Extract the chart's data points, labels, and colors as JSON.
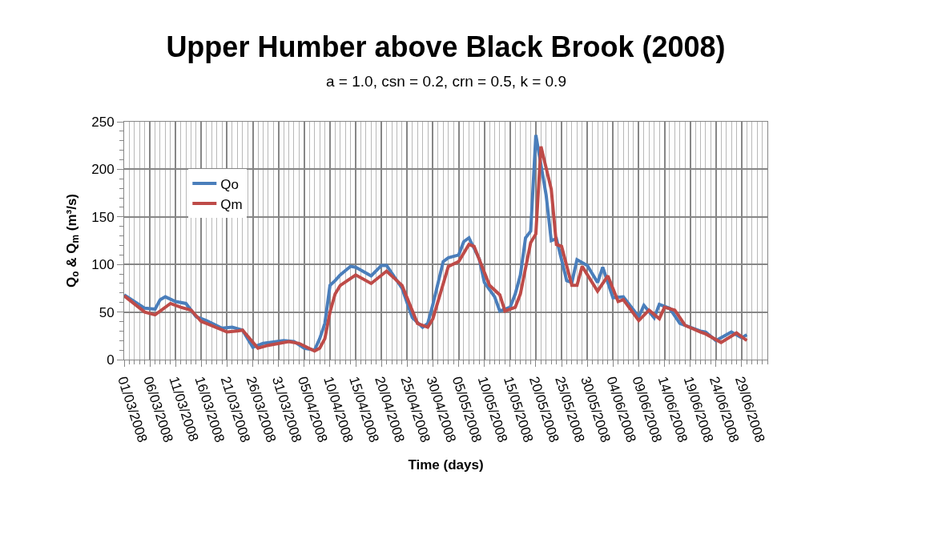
{
  "chart_data": {
    "type": "line",
    "title": "Upper Humber above Black Brook (2008)",
    "subtitle": "a = 1.0, csn = 0.2, crn = 0.5, k = 0.9",
    "xlabel": "Time (days)",
    "ylabel": "Q$_{o}$ & Q$_{m}$ (m³/s)",
    "xlim": [
      "2008-03-01",
      "2008-07-04"
    ],
    "xticks": [
      {
        "value": "2008-03-01",
        "label": "01/03/2008"
      },
      {
        "value": "2008-03-06",
        "label": "06/03/2008"
      },
      {
        "value": "2008-03-11",
        "label": "11/03/2008"
      },
      {
        "value": "2008-03-16",
        "label": "16/03/2008"
      },
      {
        "value": "2008-03-21",
        "label": "21/03/2008"
      },
      {
        "value": "2008-03-26",
        "label": "26/03/2008"
      },
      {
        "value": "2008-03-31",
        "label": "31/03/2008"
      },
      {
        "value": "2008-04-05",
        "label": "05/04/2008"
      },
      {
        "value": "2008-04-10",
        "label": "10/04/2008"
      },
      {
        "value": "2008-04-15",
        "label": "15/04/2008"
      },
      {
        "value": "2008-04-20",
        "label": "20/04/2008"
      },
      {
        "value": "2008-04-25",
        "label": "25/04/2008"
      },
      {
        "value": "2008-04-30",
        "label": "30/04/2008"
      },
      {
        "value": "2008-05-05",
        "label": "05/05/2008"
      },
      {
        "value": "2008-05-10",
        "label": "10/05/2008"
      },
      {
        "value": "2008-05-15",
        "label": "15/05/2008"
      },
      {
        "value": "2008-05-20",
        "label": "20/05/2008"
      },
      {
        "value": "2008-05-25",
        "label": "25/05/2008"
      },
      {
        "value": "2008-05-30",
        "label": "30/05/2008"
      },
      {
        "value": "2008-06-04",
        "label": "04/06/2008"
      },
      {
        "value": "2008-06-09",
        "label": "09/06/2008"
      },
      {
        "value": "2008-06-14",
        "label": "14/06/2008"
      },
      {
        "value": "2008-06-19",
        "label": "19/06/2008"
      },
      {
        "value": "2008-06-24",
        "label": "24/06/2008"
      },
      {
        "value": "2008-06-29",
        "label": "29/06/2008"
      }
    ],
    "ylim": [
      0,
      250
    ],
    "yticks": [
      0,
      50,
      100,
      150,
      200,
      250
    ],
    "grid": true,
    "legend": "top left",
    "marker": "none",
    "line_style": "solid",
    "series": [
      {
        "name": "Qo",
        "color": "#4a7ebb",
        "x": [
          "2008-03-01",
          "2008-03-05",
          "2008-03-07",
          "2008-03-08",
          "2008-03-09",
          "2008-03-11",
          "2008-03-13",
          "2008-03-15",
          "2008-03-16",
          "2008-03-17",
          "2008-03-20",
          "2008-03-22",
          "2008-03-24",
          "2008-03-26",
          "2008-03-28",
          "2008-04-01",
          "2008-04-03",
          "2008-04-05",
          "2008-04-07",
          "2008-04-08",
          "2008-04-09",
          "2008-04-10",
          "2008-04-11",
          "2008-04-12",
          "2008-04-14",
          "2008-04-15",
          "2008-04-18",
          "2008-04-20",
          "2008-04-21",
          "2008-04-24",
          "2008-04-26",
          "2008-04-28",
          "2008-04-29",
          "2008-04-30",
          "2008-05-02",
          "2008-05-03",
          "2008-05-05",
          "2008-05-06",
          "2008-05-07",
          "2008-05-09",
          "2008-05-10",
          "2008-05-12",
          "2008-05-13",
          "2008-05-15",
          "2008-05-16",
          "2008-05-17",
          "2008-05-18",
          "2008-05-19",
          "2008-05-20",
          "2008-05-22",
          "2008-05-23",
          "2008-05-24",
          "2008-05-26",
          "2008-05-27",
          "2008-05-28",
          "2008-05-30",
          "2008-06-01",
          "2008-06-02",
          "2008-06-04",
          "2008-06-06",
          "2008-06-09",
          "2008-06-10",
          "2008-06-12",
          "2008-06-13",
          "2008-06-15",
          "2008-06-17",
          "2008-06-21",
          "2008-06-22",
          "2008-06-24",
          "2008-06-27",
          "2008-06-29",
          "2008-06-30"
        ],
        "values": [
          68,
          54,
          53,
          63,
          66,
          61,
          59,
          45,
          43,
          41,
          33,
          34,
          31,
          13,
          17,
          20,
          19,
          12,
          10,
          22,
          38,
          78,
          83,
          89,
          98,
          97,
          88,
          99,
          99,
          75,
          44,
          34,
          38,
          58,
          103,
          107,
          110,
          124,
          128,
          106,
          81,
          66,
          51,
          55,
          69,
          89,
          128,
          135,
          236,
          173,
          125,
          127,
          83,
          81,
          105,
          99,
          81,
          97,
          65,
          66,
          45,
          57,
          44,
          58,
          54,
          38,
          30,
          29,
          20,
          29,
          23,
          26
        ]
      },
      {
        "name": "Qm",
        "color": "#be4b48",
        "x": [
          "2008-03-01",
          "2008-03-05",
          "2008-03-07",
          "2008-03-10",
          "2008-03-12",
          "2008-03-14",
          "2008-03-16",
          "2008-03-17",
          "2008-03-21",
          "2008-03-23",
          "2008-03-24",
          "2008-03-27",
          "2008-03-29",
          "2008-04-02",
          "2008-04-04",
          "2008-04-07",
          "2008-04-08",
          "2008-04-09",
          "2008-04-10",
          "2008-04-11",
          "2008-04-12",
          "2008-04-15",
          "2008-04-18",
          "2008-04-21",
          "2008-04-24",
          "2008-04-27",
          "2008-04-29",
          "2008-04-30",
          "2008-05-03",
          "2008-05-05",
          "2008-05-07",
          "2008-05-08",
          "2008-05-11",
          "2008-05-13",
          "2008-05-14",
          "2008-05-16",
          "2008-05-17",
          "2008-05-19",
          "2008-05-20",
          "2008-05-21",
          "2008-05-23",
          "2008-05-24",
          "2008-05-25",
          "2008-05-27",
          "2008-05-28",
          "2008-05-29",
          "2008-06-01",
          "2008-06-03",
          "2008-06-05",
          "2008-06-06",
          "2008-06-09",
          "2008-06-11",
          "2008-06-13",
          "2008-06-14",
          "2008-06-16",
          "2008-06-18",
          "2008-06-21",
          "2008-06-22",
          "2008-06-25",
          "2008-06-28",
          "2008-06-30"
        ],
        "values": [
          67,
          50,
          47,
          59,
          55,
          52,
          40,
          38,
          29,
          30,
          31,
          12,
          15,
          19,
          17,
          9,
          12,
          22,
          50,
          69,
          78,
          89,
          80,
          93,
          78,
          38,
          34,
          43,
          98,
          103,
          121,
          119,
          78,
          68,
          51,
          55,
          69,
          123,
          132,
          224,
          179,
          121,
          119,
          78,
          78,
          98,
          72,
          88,
          61,
          63,
          41,
          52,
          43,
          55,
          52,
          36,
          29,
          27,
          18,
          28,
          20
        ]
      }
    ]
  }
}
